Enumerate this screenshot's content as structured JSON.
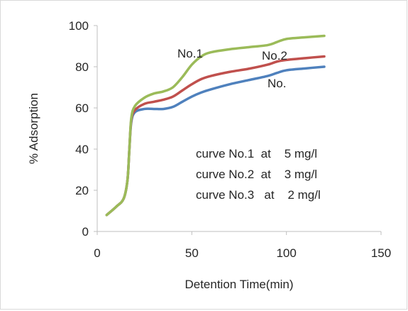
{
  "chart_data": {
    "type": "line",
    "xlabel": "Detention Time(min)",
    "ylabel": "% Adsorption",
    "xlim": [
      0,
      150
    ],
    "ylim": [
      0,
      100
    ],
    "x_ticks": [
      "0",
      "50",
      "100",
      "150"
    ],
    "y_ticks": [
      "0",
      "20",
      "40",
      "60",
      "80",
      "100"
    ],
    "grid": false,
    "series": [
      {
        "name": "No.1",
        "color": "#9bbb59",
        "x": [
          5,
          10,
          14,
          16,
          17,
          18,
          20,
          25,
          30,
          35,
          40,
          45,
          50,
          55,
          60,
          70,
          80,
          90,
          95,
          100,
          110,
          120
        ],
        "y": [
          8,
          12,
          16,
          25,
          40,
          55,
          61,
          65,
          67,
          68,
          70,
          75,
          81,
          85,
          87,
          88.5,
          89.5,
          90.5,
          92,
          93.5,
          94.3,
          95
        ]
      },
      {
        "name": "No.2",
        "color": "#c0504d",
        "x": [
          5,
          10,
          14,
          16,
          17,
          18,
          20,
          25,
          30,
          35,
          40,
          45,
          50,
          55,
          60,
          70,
          80,
          90,
          95,
          100,
          110,
          120
        ],
        "y": [
          8,
          12,
          16,
          25,
          40,
          54,
          59,
          62,
          63,
          64,
          65.5,
          68.5,
          71.5,
          74,
          75.5,
          77.5,
          79,
          81,
          82.5,
          83.3,
          84.2,
          85
        ]
      },
      {
        "name": "No.",
        "color": "#4f81bd",
        "x": [
          5,
          10,
          14,
          16,
          17,
          18,
          20,
          25,
          30,
          35,
          40,
          45,
          50,
          55,
          60,
          70,
          80,
          90,
          95,
          100,
          110,
          120
        ],
        "y": [
          8,
          12,
          16,
          25,
          40,
          53,
          58,
          59.5,
          59.5,
          59.5,
          60.5,
          63,
          65.5,
          67.5,
          69,
          71.5,
          73.5,
          75.5,
          77,
          78.3,
          79.2,
          80
        ]
      }
    ],
    "series_labels": [
      "No.1",
      "No.2",
      "No."
    ],
    "annotations": [
      "curve No.1  at    5 mg/l",
      "curve No.2  at    3 mg/l",
      "curve No.3   at    2 mg/l"
    ]
  }
}
